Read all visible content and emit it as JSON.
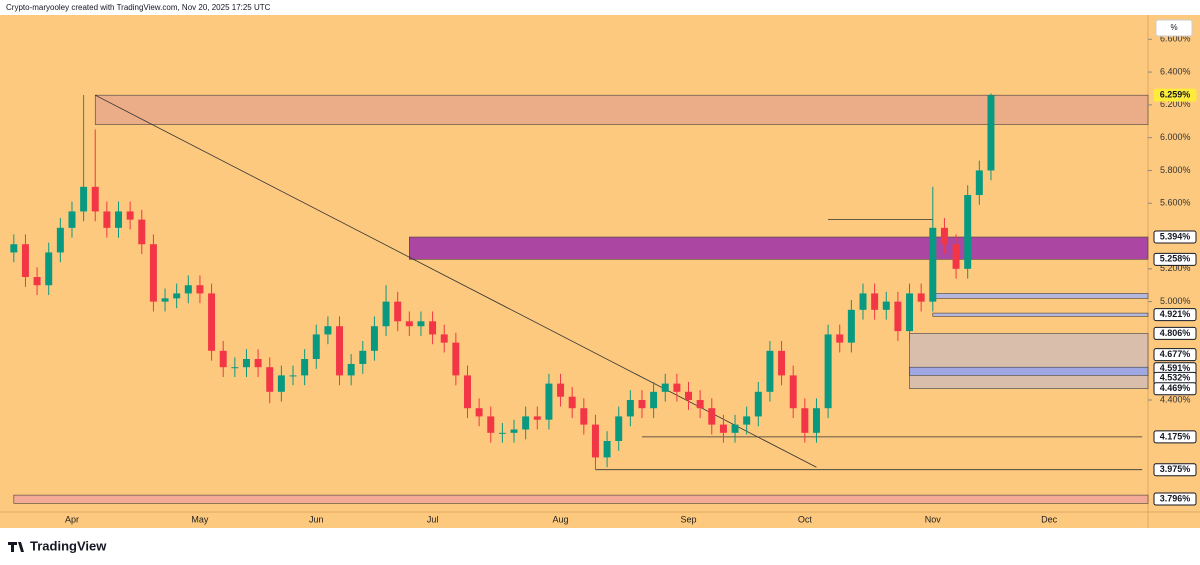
{
  "header": "Crypto-maryooley created with TradingView.com, Nov 20, 2025 17:25 UTC",
  "footer": "TradingView",
  "scale_button": "%",
  "chart_data": {
    "type": "candlestick",
    "up_color": "#089981",
    "down_color": "#f23645",
    "background": "#fdc97f",
    "categories": [
      null,
      null,
      null,
      null,
      null,
      "Apr",
      null,
      null,
      null,
      null,
      null,
      null,
      null,
      null,
      null,
      null,
      "May",
      null,
      null,
      null,
      null,
      null,
      null,
      null,
      null,
      null,
      "Jun",
      null,
      null,
      null,
      null,
      null,
      null,
      null,
      null,
      null,
      "Jul",
      null,
      null,
      null,
      null,
      null,
      null,
      null,
      null,
      null,
      null,
      "Aug",
      null,
      null,
      null,
      null,
      null,
      null,
      null,
      null,
      null,
      null,
      "Sep",
      null,
      null,
      null,
      null,
      null,
      null,
      null,
      null,
      null,
      "Oct",
      null,
      null,
      null,
      null,
      null,
      null,
      null,
      null,
      null,
      null,
      "Nov",
      null,
      null,
      null,
      null,
      null,
      null,
      null,
      null,
      null,
      "Dec",
      null,
      null,
      null,
      null,
      null,
      null,
      null,
      null
    ],
    "open": [
      5.3,
      5.35,
      5.15,
      5.1,
      5.3,
      5.45,
      5.55,
      5.7,
      5.55,
      5.45,
      5.55,
      5.5,
      5.35,
      5.0,
      5.02,
      5.05,
      5.1,
      5.05,
      4.7,
      4.6,
      4.6,
      4.65,
      4.6,
      4.45,
      4.55,
      4.55,
      4.65,
      4.8,
      4.85,
      4.55,
      4.62,
      4.7,
      4.85,
      5.0,
      4.88,
      4.85,
      4.88,
      4.8,
      4.75,
      4.55,
      4.35,
      4.3,
      4.2,
      4.2,
      4.22,
      4.3,
      4.28,
      4.5,
      4.42,
      4.35,
      4.25,
      4.05,
      4.15,
      4.3,
      4.4,
      4.35,
      4.45,
      4.5,
      4.45,
      4.4,
      4.35,
      4.25,
      4.2,
      4.25,
      4.3,
      4.45,
      4.7,
      4.55,
      4.35,
      4.2,
      4.35,
      4.8,
      4.75,
      4.95,
      5.05,
      4.95,
      5.0,
      4.82,
      5.05,
      5.0,
      5.45,
      5.35,
      5.2,
      5.65,
      5.8,
      null,
      null,
      null,
      null,
      null,
      null,
      null,
      null,
      null,
      null,
      null,
      null,
      null
    ],
    "high": [
      5.41,
      5.41,
      5.21,
      5.36,
      5.51,
      5.61,
      6.26,
      6.05,
      5.61,
      5.61,
      5.61,
      5.56,
      5.41,
      5.08,
      5.11,
      5.16,
      5.16,
      5.11,
      4.76,
      4.66,
      4.71,
      4.71,
      4.66,
      4.61,
      4.61,
      4.71,
      4.86,
      4.91,
      4.91,
      4.68,
      4.76,
      4.91,
      5.1,
      5.06,
      4.94,
      4.94,
      4.94,
      4.86,
      4.81,
      4.61,
      4.41,
      4.36,
      4.26,
      4.28,
      4.36,
      4.36,
      4.56,
      4.56,
      4.48,
      4.41,
      4.31,
      4.21,
      4.36,
      4.46,
      4.46,
      4.51,
      4.56,
      4.56,
      4.51,
      4.46,
      4.41,
      4.31,
      4.31,
      4.36,
      4.51,
      4.76,
      4.76,
      4.61,
      4.41,
      4.41,
      4.86,
      4.86,
      5.01,
      5.11,
      5.11,
      5.06,
      5.06,
      5.11,
      5.11,
      5.7,
      5.51,
      5.41,
      5.71,
      5.86,
      6.27,
      null,
      null,
      null,
      null,
      null,
      null,
      null,
      null,
      null,
      null,
      null,
      null,
      null
    ],
    "low": [
      5.24,
      5.09,
      5.04,
      5.04,
      5.24,
      5.39,
      5.49,
      5.49,
      5.39,
      5.39,
      5.44,
      5.29,
      4.94,
      4.94,
      4.96,
      4.99,
      4.99,
      4.64,
      4.54,
      4.54,
      4.54,
      4.54,
      4.38,
      4.39,
      4.49,
      4.49,
      4.59,
      4.74,
      4.49,
      4.49,
      4.56,
      4.64,
      4.79,
      4.82,
      4.79,
      4.79,
      4.74,
      4.69,
      4.49,
      4.29,
      4.24,
      4.14,
      4.14,
      4.14,
      4.16,
      4.22,
      4.22,
      4.36,
      4.29,
      4.19,
      3.975,
      3.99,
      4.09,
      4.24,
      4.29,
      4.29,
      4.39,
      4.39,
      4.34,
      4.29,
      4.19,
      4.14,
      4.14,
      4.19,
      4.24,
      4.39,
      4.49,
      4.29,
      4.14,
      4.14,
      4.29,
      4.69,
      4.69,
      4.89,
      4.89,
      4.89,
      4.76,
      4.76,
      4.94,
      4.94,
      5.29,
      5.14,
      5.14,
      5.59,
      5.74,
      null,
      null,
      null,
      null,
      null,
      null,
      null,
      null,
      null,
      null,
      null,
      null,
      null
    ],
    "close": [
      5.35,
      5.15,
      5.1,
      5.3,
      5.45,
      5.55,
      5.7,
      5.55,
      5.45,
      5.55,
      5.5,
      5.35,
      5.0,
      5.02,
      5.05,
      5.1,
      5.05,
      4.7,
      4.6,
      4.6,
      4.65,
      4.6,
      4.45,
      4.55,
      4.55,
      4.65,
      4.8,
      4.85,
      4.55,
      4.62,
      4.7,
      4.85,
      5.0,
      4.88,
      4.85,
      4.88,
      4.8,
      4.75,
      4.55,
      4.35,
      4.3,
      4.2,
      4.2,
      4.22,
      4.3,
      4.28,
      4.5,
      4.42,
      4.35,
      4.25,
      4.05,
      4.15,
      4.3,
      4.4,
      4.35,
      4.45,
      4.5,
      4.45,
      4.4,
      4.35,
      4.25,
      4.2,
      4.25,
      4.3,
      4.45,
      4.7,
      4.55,
      4.35,
      4.2,
      4.35,
      4.8,
      4.75,
      4.95,
      5.05,
      4.95,
      5.0,
      4.82,
      5.05,
      5.0,
      5.45,
      5.35,
      5.2,
      5.65,
      5.8,
      6.259,
      null,
      null,
      null,
      null,
      null,
      null,
      null,
      null,
      null,
      null,
      null,
      null,
      null
    ],
    "ylim": [
      3.717,
      6.748
    ],
    "yticks": [
      {
        "value": 6.6,
        "label": "6.600%"
      },
      {
        "value": 6.4,
        "label": "6.400%"
      },
      {
        "value": 6.2,
        "label": "6.200%"
      },
      {
        "value": 6.0,
        "label": "6.000%"
      },
      {
        "value": 5.8,
        "label": "5.800%"
      },
      {
        "value": 5.6,
        "label": "5.600%"
      },
      {
        "value": 5.2,
        "label": "5.200%"
      },
      {
        "value": 5.0,
        "label": "5.000%"
      },
      {
        "value": 4.4,
        "label": "4.400%"
      }
    ],
    "price_labels": [
      {
        "value": 6.259,
        "label": "6.259%",
        "color": "#ffeb3b"
      },
      {
        "value": 5.394,
        "label": "5.394%",
        "color": "#131722"
      },
      {
        "value": 5.258,
        "label": "5.258%",
        "color": "#131722"
      },
      {
        "value": 4.921,
        "label": "4.921%",
        "color": "#131722"
      },
      {
        "value": 4.806,
        "label": "4.806%",
        "color": "#131722"
      },
      {
        "value": 4.677,
        "label": "4.677%",
        "color": "#131722"
      },
      {
        "value": 4.591,
        "label": "4.591%",
        "color": "#131722"
      },
      {
        "value": 4.532,
        "label": "4.532%",
        "color": "#131722"
      },
      {
        "value": 4.469,
        "label": "4.469%",
        "color": "#131722"
      },
      {
        "value": 4.175,
        "label": "4.175%",
        "color": "#131722"
      },
      {
        "value": 3.975,
        "label": "3.975%",
        "color": "#131722"
      },
      {
        "value": 3.796,
        "label": "3.796%",
        "color": "#131722"
      }
    ],
    "zones": [
      {
        "start": 7,
        "top": 6.259,
        "bottom": 6.08,
        "color": "#eaa98a"
      },
      {
        "start": 34,
        "top": 5.394,
        "bottom": 5.258,
        "color": "#a33aa6"
      },
      {
        "start": 79,
        "top": 5.05,
        "bottom": 5.02,
        "color": "#aeb4e6"
      },
      {
        "start": 77,
        "top": 4.806,
        "bottom": 4.469,
        "color": "#d6bdb0"
      },
      {
        "start": 79,
        "top": 4.93,
        "bottom": 4.91,
        "color": "#aeb4e6"
      },
      {
        "start": 77,
        "top": 4.6,
        "bottom": 4.55,
        "color": "#9aa6ea"
      },
      {
        "start": 0,
        "top": 3.82,
        "bottom": 3.77,
        "color": "#f2a79a"
      }
    ],
    "lines": [
      {
        "x": [
          7,
          69
        ],
        "y": [
          6.259,
          3.99
        ]
      },
      {
        "x": [
          50,
          97
        ],
        "y": [
          3.975,
          3.975
        ]
      },
      {
        "x": [
          54,
          97
        ],
        "y": [
          4.175,
          4.175
        ]
      },
      {
        "x": [
          70,
          79
        ],
        "y": [
          5.5,
          5.5
        ]
      }
    ]
  }
}
